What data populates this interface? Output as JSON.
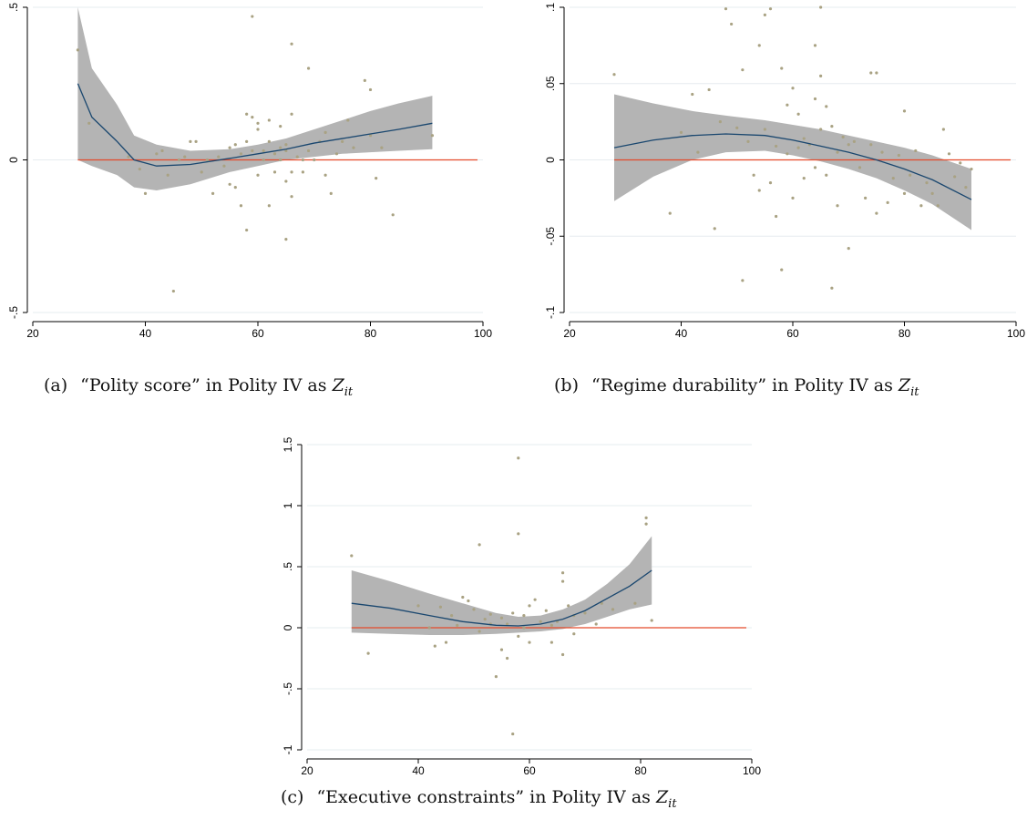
{
  "colors": {
    "band": "#b4b4b4",
    "fit": "#1a476f",
    "zero": "#e34a2b",
    "points": "#a9a283",
    "grid": "#e6ecef"
  },
  "captions": {
    "a": {
      "label": "(a)",
      "text": "“Polity score” in Polity IV as",
      "z": "Z",
      "sub": "it"
    },
    "b": {
      "label": "(b)",
      "text": "“Regime durability” in Polity IV as",
      "z": "Z",
      "sub": "it"
    },
    "c": {
      "label": "(c)",
      "text": "“Executive constraints” in Polity IV as",
      "z": "Z",
      "sub": "it"
    }
  },
  "chart_data": [
    {
      "id": "a",
      "type": "scatter",
      "xlim": [
        20,
        100
      ],
      "ylim": [
        -0.5,
        0.5
      ],
      "xticks": [
        20,
        40,
        60,
        80,
        100
      ],
      "xtick_labels": [
        "20",
        "40",
        "60",
        "80",
        "100"
      ],
      "yticks": [
        -0.5,
        0,
        0.5
      ],
      "ytick_labels": [
        "-.5",
        "0",
        ".5"
      ],
      "grid": true,
      "reference_line_y": 0,
      "fit": {
        "x": [
          28,
          30.5,
          35,
          38,
          42,
          48,
          55,
          60,
          65,
          70,
          75,
          80,
          85,
          91
        ],
        "y": [
          0.25,
          0.14,
          0.06,
          0,
          -0.02,
          -0.015,
          0.005,
          0.02,
          0.035,
          0.055,
          0.07,
          0.085,
          0.1,
          0.12
        ]
      },
      "band_upper": [
        0.5,
        0.3,
        0.18,
        0.08,
        0.05,
        0.03,
        0.035,
        0.05,
        0.07,
        0.1,
        0.13,
        0.16,
        0.185,
        0.21
      ],
      "band_lower": [
        0,
        -0.02,
        -0.05,
        -0.09,
        -0.1,
        -0.08,
        -0.04,
        -0.02,
        0,
        0.01,
        0.02,
        0.025,
        0.03,
        0.035
      ],
      "points": [
        [
          28,
          0.36
        ],
        [
          30,
          0.12
        ],
        [
          37,
          0.01
        ],
        [
          39,
          -0.03
        ],
        [
          40,
          -0.11
        ],
        [
          42,
          0.02
        ],
        [
          43,
          0.03
        ],
        [
          44,
          -0.05
        ],
        [
          45,
          -0.43
        ],
        [
          46,
          0
        ],
        [
          47,
          0.01
        ],
        [
          48,
          0.06
        ],
        [
          49,
          0.06
        ],
        [
          50,
          -0.04
        ],
        [
          51,
          0
        ],
        [
          52,
          -0.11
        ],
        [
          53,
          0.01
        ],
        [
          54,
          -0.02
        ],
        [
          55,
          -0.08
        ],
        [
          55,
          0.04
        ],
        [
          56,
          0.05
        ],
        [
          56,
          -0.09
        ],
        [
          57,
          0.02
        ],
        [
          57,
          -0.15
        ],
        [
          58,
          0.15
        ],
        [
          58,
          -0.23
        ],
        [
          58,
          0.06
        ],
        [
          59,
          0.14
        ],
        [
          59,
          0.47
        ],
        [
          59,
          0.03
        ],
        [
          60,
          0.12
        ],
        [
          60,
          -0.05
        ],
        [
          60,
          0.1
        ],
        [
          61,
          0
        ],
        [
          61,
          0.03
        ],
        [
          62,
          -0.15
        ],
        [
          62,
          0.06
        ],
        [
          62,
          0.13
        ],
        [
          63,
          0.02
        ],
        [
          63,
          -0.04
        ],
        [
          64,
          0
        ],
        [
          64,
          0.04
        ],
        [
          64,
          0.11
        ],
        [
          65,
          0.03
        ],
        [
          65,
          -0.07
        ],
        [
          65,
          -0.26
        ],
        [
          65,
          0.05
        ],
        [
          66,
          0.38
        ],
        [
          66,
          -0.04
        ],
        [
          66,
          0.15
        ],
        [
          66,
          -0.12
        ],
        [
          67,
          0.01
        ],
        [
          68,
          0
        ],
        [
          68,
          -0.04
        ],
        [
          69,
          0.03
        ],
        [
          69,
          0.3
        ],
        [
          70,
          0
        ],
        [
          71,
          0.06
        ],
        [
          72,
          0.09
        ],
        [
          72,
          -0.05
        ],
        [
          73,
          -0.11
        ],
        [
          74,
          0.02
        ],
        [
          75,
          0.06
        ],
        [
          76,
          0.13
        ],
        [
          77,
          0.04
        ],
        [
          79,
          0.26
        ],
        [
          80,
          0.23
        ],
        [
          80,
          0.08
        ],
        [
          81,
          -0.06
        ],
        [
          82,
          0.04
        ],
        [
          84,
          -0.18
        ],
        [
          91,
          0.08
        ]
      ]
    },
    {
      "id": "b",
      "type": "scatter",
      "xlim": [
        20,
        100
      ],
      "ylim": [
        -0.1,
        0.1
      ],
      "xticks": [
        20,
        40,
        60,
        80,
        100
      ],
      "xtick_labels": [
        "20",
        "40",
        "60",
        "80",
        "100"
      ],
      "yticks": [
        -0.1,
        -0.05,
        0,
        0.05,
        0.1
      ],
      "ytick_labels": [
        "-.1",
        "-.05",
        "0",
        ".05",
        ".1"
      ],
      "grid": true,
      "reference_line_y": 0,
      "fit": {
        "x": [
          28,
          35,
          42,
          48,
          55,
          60,
          65,
          70,
          75,
          80,
          85,
          92
        ],
        "y": [
          0.008,
          0.013,
          0.016,
          0.017,
          0.016,
          0.013,
          0.009,
          0.005,
          0,
          -0.006,
          -0.013,
          -0.026
        ]
      },
      "band_upper": [
        0.043,
        0.037,
        0.032,
        0.029,
        0.026,
        0.023,
        0.02,
        0.016,
        0.012,
        0.008,
        0.003,
        -0.006
      ],
      "band_lower": [
        -0.027,
        -0.011,
        0,
        0.005,
        0.006,
        0.003,
        -0.001,
        -0.006,
        -0.012,
        -0.02,
        -0.029,
        -0.046
      ],
      "points": [
        [
          28,
          0.056
        ],
        [
          38,
          -0.035
        ],
        [
          40,
          0.018
        ],
        [
          42,
          0.043
        ],
        [
          43,
          0.005
        ],
        [
          45,
          0.046
        ],
        [
          46,
          -0.045
        ],
        [
          47,
          0.025
        ],
        [
          48,
          0.099
        ],
        [
          49,
          0.089
        ],
        [
          50,
          0.021
        ],
        [
          51,
          0.059
        ],
        [
          51,
          -0.079
        ],
        [
          52,
          0.012
        ],
        [
          53,
          -0.01
        ],
        [
          54,
          0.075
        ],
        [
          54,
          -0.02
        ],
        [
          55,
          0.095
        ],
        [
          55,
          0.02
        ],
        [
          56,
          0.099
        ],
        [
          56,
          -0.015
        ],
        [
          57,
          0.009
        ],
        [
          57,
          -0.037
        ],
        [
          58,
          0.06
        ],
        [
          58,
          -0.072
        ],
        [
          59,
          0.036
        ],
        [
          59,
          0.004
        ],
        [
          60,
          -0.025
        ],
        [
          60,
          0.047
        ],
        [
          61,
          0.008
        ],
        [
          61,
          0.03
        ],
        [
          62,
          -0.012
        ],
        [
          62,
          0.014
        ],
        [
          63,
          0.01
        ],
        [
          64,
          0.075
        ],
        [
          64,
          -0.005
        ],
        [
          64,
          0.04
        ],
        [
          65,
          0.1
        ],
        [
          65,
          0.055
        ],
        [
          65,
          0.02
        ],
        [
          66,
          0.035
        ],
        [
          66,
          -0.01
        ],
        [
          67,
          -0.084
        ],
        [
          67,
          0.022
        ],
        [
          68,
          0.005
        ],
        [
          68,
          -0.03
        ],
        [
          69,
          0.015
        ],
        [
          70,
          -0.058
        ],
        [
          70,
          0.01
        ],
        [
          71,
          0.012
        ],
        [
          72,
          -0.005
        ],
        [
          73,
          -0.025
        ],
        [
          74,
          0.057
        ],
        [
          74,
          0.01
        ],
        [
          75,
          0.057
        ],
        [
          75,
          -0.035
        ],
        [
          76,
          0.005
        ],
        [
          77,
          -0.028
        ],
        [
          78,
          -0.012
        ],
        [
          79,
          0.003
        ],
        [
          80,
          0.032
        ],
        [
          80,
          -0.022
        ],
        [
          81,
          -0.01
        ],
        [
          82,
          0.006
        ],
        [
          83,
          -0.03
        ],
        [
          84,
          -0.015
        ],
        [
          85,
          -0.022
        ],
        [
          86,
          -0.03
        ],
        [
          87,
          0.02
        ],
        [
          88,
          0.004
        ],
        [
          89,
          -0.011
        ],
        [
          90,
          -0.002
        ],
        [
          91,
          -0.018
        ],
        [
          92,
          -0.006
        ]
      ]
    },
    {
      "id": "c",
      "type": "scatter",
      "xlim": [
        20,
        100
      ],
      "ylim": [
        -1,
        1.5
      ],
      "xticks": [
        20,
        40,
        60,
        80,
        100
      ],
      "xtick_labels": [
        "20",
        "40",
        "60",
        "80",
        "100"
      ],
      "yticks": [
        -1,
        -0.5,
        0,
        0.5,
        1,
        1.5
      ],
      "ytick_labels": [
        "-1",
        "-.5",
        "0",
        ".5",
        "1",
        "1.5"
      ],
      "grid": true,
      "reference_line_y": 0,
      "fit": {
        "x": [
          28,
          35,
          42,
          48,
          54,
          58,
          62,
          66,
          70,
          74,
          78,
          82
        ],
        "y": [
          0.2,
          0.16,
          0.1,
          0.05,
          0.02,
          0.015,
          0.03,
          0.07,
          0.14,
          0.24,
          0.34,
          0.47
        ]
      },
      "band_upper": [
        0.47,
        0.38,
        0.28,
        0.2,
        0.12,
        0.09,
        0.1,
        0.15,
        0.23,
        0.36,
        0.52,
        0.75
      ],
      "band_lower": [
        -0.04,
        -0.05,
        -0.06,
        -0.06,
        -0.05,
        -0.04,
        -0.03,
        -0.01,
        0.03,
        0.09,
        0.15,
        0.19
      ],
      "points": [
        [
          28,
          0.59
        ],
        [
          31,
          -0.21
        ],
        [
          40,
          0.18
        ],
        [
          42,
          0
        ],
        [
          43,
          -0.15
        ],
        [
          44,
          0.17
        ],
        [
          45,
          -0.12
        ],
        [
          46,
          0.1
        ],
        [
          47,
          0.02
        ],
        [
          48,
          0.25
        ],
        [
          49,
          0.22
        ],
        [
          50,
          0.15
        ],
        [
          51,
          -0.03
        ],
        [
          51,
          0.68
        ],
        [
          52,
          0.07
        ],
        [
          53,
          0.11
        ],
        [
          53,
          0.03
        ],
        [
          54,
          -0.4
        ],
        [
          55,
          -0.18
        ],
        [
          55,
          0.08
        ],
        [
          56,
          0.03
        ],
        [
          56,
          -0.25
        ],
        [
          57,
          -0.87
        ],
        [
          57,
          0.12
        ],
        [
          58,
          0.77
        ],
        [
          58,
          -0.07
        ],
        [
          58,
          1.39
        ],
        [
          59,
          0
        ],
        [
          59,
          0.1
        ],
        [
          60,
          -0.12
        ],
        [
          60,
          0.18
        ],
        [
          61,
          0.23
        ],
        [
          62,
          0.05
        ],
        [
          63,
          0.14
        ],
        [
          64,
          0.02
        ],
        [
          64,
          -0.12
        ],
        [
          65,
          0.05
        ],
        [
          66,
          0.45
        ],
        [
          66,
          0.38
        ],
        [
          66,
          -0.22
        ],
        [
          67,
          0.18
        ],
        [
          68,
          0.1
        ],
        [
          68,
          -0.05
        ],
        [
          70,
          0.12
        ],
        [
          72,
          0.03
        ],
        [
          73,
          0.2
        ],
        [
          75,
          0.15
        ],
        [
          79,
          0.2
        ],
        [
          81,
          0.9
        ],
        [
          81,
          0.85
        ],
        [
          82,
          0.06
        ]
      ]
    }
  ]
}
